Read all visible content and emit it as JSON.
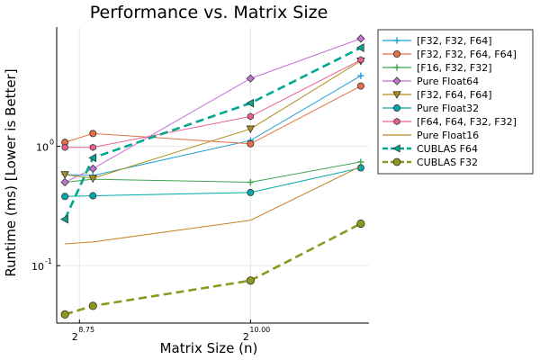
{
  "chart_data": {
    "type": "line",
    "title": "Performance vs. Matrix Size",
    "xlabel": "Matrix Size (n)",
    "ylabel": "Runtime (ms) [Lower is Better]",
    "x_scale": "log2",
    "y_scale": "log10",
    "grid": true,
    "legend_position": "outside-top-right",
    "x": [
      400,
      461,
      1024,
      1790
    ],
    "x_ticks": [
      {
        "base": "2",
        "exp": "8.75"
      },
      {
        "base": "2",
        "exp": "10.00"
      }
    ],
    "y_ticks": [
      {
        "base": "10",
        "exp": "0"
      },
      {
        "base": "10",
        "exp": "-1"
      }
    ],
    "series": [
      {
        "name": "[F32, F32, F64]",
        "color": "#1f9fd8",
        "marker": "plus",
        "dashed": false,
        "values": [
          0.58,
          0.57,
          1.12,
          3.9
        ]
      },
      {
        "name": "[F32, F32, F64, F64]",
        "color": "#e26f46",
        "marker": "circle",
        "dashed": false,
        "values": [
          1.08,
          1.28,
          1.05,
          3.2
        ]
      },
      {
        "name": "[F16, F32, F32]",
        "color": "#3da44d",
        "marker": "plus",
        "dashed": false,
        "values": [
          0.5,
          0.53,
          0.5,
          0.74
        ]
      },
      {
        "name": "Pure Float64",
        "color": "#c371d2",
        "marker": "diamond",
        "dashed": false,
        "values": [
          0.5,
          0.65,
          3.7,
          8.0
        ]
      },
      {
        "name": "[F32, F64, F64]",
        "color": "#ac8e18",
        "marker": "triangle-down",
        "dashed": false,
        "values": [
          0.58,
          0.54,
          1.4,
          5.2
        ]
      },
      {
        "name": "Pure Float32",
        "color": "#00a9ad",
        "marker": "circle",
        "dashed": false,
        "values": [
          0.38,
          0.385,
          0.41,
          0.66
        ]
      },
      {
        "name": "[F64, F64, F32, F32]",
        "color": "#ed5e93",
        "marker": "hexagon",
        "dashed": false,
        "values": [
          0.98,
          0.98,
          1.78,
          5.3
        ]
      },
      {
        "name": "Pure Float16",
        "color": "#c68225",
        "marker": "none",
        "dashed": false,
        "values": [
          0.152,
          0.158,
          0.24,
          0.68
        ]
      },
      {
        "name": "CUBLAS F64",
        "color": "#00a98d",
        "marker": "triangle-left",
        "dashed": true,
        "values": [
          0.245,
          0.8,
          2.3,
          6.7
        ]
      },
      {
        "name": "CUBLAS F32",
        "color": "#8e971e",
        "marker": "circle",
        "dashed": true,
        "values": [
          0.039,
          0.046,
          0.075,
          0.225
        ]
      }
    ]
  }
}
